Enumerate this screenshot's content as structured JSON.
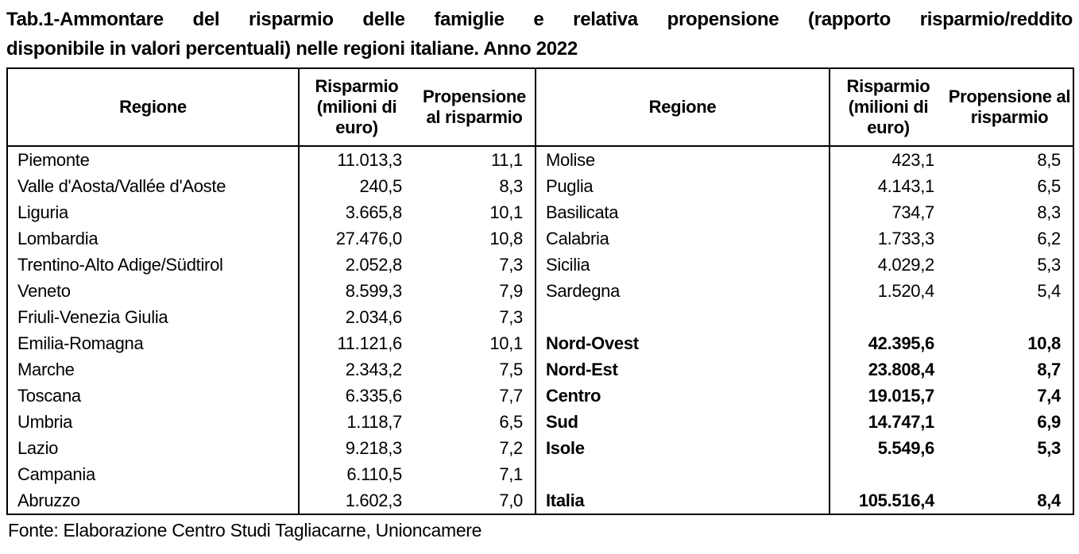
{
  "title": {
    "line1": "Tab.1-Ammontare del risparmio delle famiglie e relativa propensione (rapporto risparmio/reddito",
    "line2": "disponibile in valori percentuali) nelle regioni italiane. Anno 2022"
  },
  "headers": {
    "region": "Regione",
    "savings": "Risparmio (milioni di euro)",
    "propensity": "Propensione al risparmio"
  },
  "rows": [
    {
      "lr": "Piemonte",
      "ls": "11.013,3",
      "lp": "11,1",
      "rr": "Molise",
      "rs": "423,1",
      "rp": "8,5"
    },
    {
      "lr": "Valle d'Aosta/Vallée d'Aoste",
      "ls": "240,5",
      "lp": "8,3",
      "rr": "Puglia",
      "rs": "4.143,1",
      "rp": "6,5"
    },
    {
      "lr": "Liguria",
      "ls": "3.665,8",
      "lp": "10,1",
      "rr": "Basilicata",
      "rs": "734,7",
      "rp": "8,3"
    },
    {
      "lr": "Lombardia",
      "ls": "27.476,0",
      "lp": "10,8",
      "rr": "Calabria",
      "rs": "1.733,3",
      "rp": "6,2"
    },
    {
      "lr": "Trentino-Alto Adige/Südtirol",
      "ls": "2.052,8",
      "lp": "7,3",
      "rr": "Sicilia",
      "rs": "4.029,2",
      "rp": "5,3"
    },
    {
      "lr": "Veneto",
      "ls": "8.599,3",
      "lp": "7,9",
      "rr": "Sardegna",
      "rs": "1.520,4",
      "rp": "5,4"
    },
    {
      "lr": "Friuli-Venezia Giulia",
      "ls": "2.034,6",
      "lp": "7,3",
      "rr": "",
      "rs": "",
      "rp": ""
    },
    {
      "lr": "Emilia-Romagna",
      "ls": "11.121,6",
      "lp": "10,1",
      "rr": "Nord-Ovest",
      "rs": "42.395,6",
      "rp": "10,8"
    },
    {
      "lr": "Marche",
      "ls": "2.343,2",
      "lp": "7,5",
      "rr": "Nord-Est",
      "rs": "23.808,4",
      "rp": "8,7"
    },
    {
      "lr": "Toscana",
      "ls": "6.335,6",
      "lp": "7,7",
      "rr": "Centro",
      "rs": "19.015,7",
      "rp": "7,4"
    },
    {
      "lr": "Umbria",
      "ls": "1.118,7",
      "lp": "6,5",
      "rr": "Sud",
      "rs": "14.747,1",
      "rp": "6,9"
    },
    {
      "lr": "Lazio",
      "ls": "9.218,3",
      "lp": "7,2",
      "rr": "Isole",
      "rs": "5.549,6",
      "rp": "5,3"
    },
    {
      "lr": "Campania",
      "ls": "6.110,5",
      "lp": "7,1",
      "rr": "",
      "rs": "",
      "rp": ""
    },
    {
      "lr": "Abruzzo",
      "ls": "1.602,3",
      "lp": "7,0",
      "rr": "Italia",
      "rs": "105.516,4",
      "rp": "8,4"
    }
  ],
  "source": "Fonte: Elaborazione Centro Studi Tagliacarne, Unioncamere"
}
